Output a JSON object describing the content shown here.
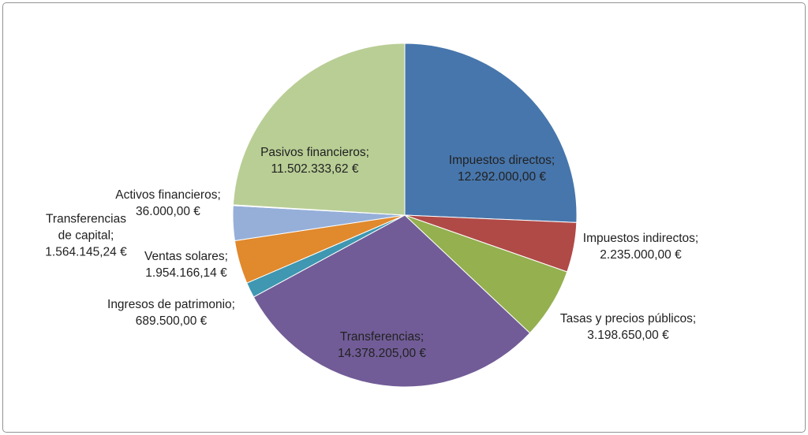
{
  "frame": {
    "border_color": "#939393",
    "background": "#FFFFFF"
  },
  "chart_data": {
    "type": "pie",
    "title": "",
    "currency": "€",
    "label_format": "category; value €",
    "direction": "clockwise",
    "start_angle_deg": 0,
    "legend": "none",
    "total": 47850000.0,
    "slices": [
      {
        "label": "Impuestos directos;",
        "value": 12292000.0,
        "value_label": "12.292.000,00 €",
        "color": "#4776AC"
      },
      {
        "label": "Impuestos indirectos;",
        "value": 2235000.0,
        "value_label": "2.235.000,00 €",
        "color": "#B04A47"
      },
      {
        "label": "Tasas y precios públicos;",
        "value": 3198650.0,
        "value_label": "3.198.650,00 €",
        "color": "#94B04F"
      },
      {
        "label": "Transferencias;",
        "value": 14378205.0,
        "value_label": "14.378.205,00 €",
        "color": "#715C97"
      },
      {
        "label": "Ingresos de patrimonio;",
        "value": 689500.0,
        "value_label": "689.500,00 €",
        "color": "#3F97B1"
      },
      {
        "label": "Ventas solares;",
        "value": 1954166.14,
        "value_label": "1.954.166,14 €",
        "color": "#E0892D"
      },
      {
        "label": "Transferencias de capital;",
        "value": 1564145.24,
        "value_label": "1.564.145,24 €",
        "color": "#95AFD9"
      },
      {
        "label": "Activos financieros;",
        "value": 36000.0,
        "value_label": "36.000,00 €",
        "color": "#D99694"
      },
      {
        "label": "Pasivos financieros;",
        "value": 11502333.62,
        "value_label": "11.502.333,62 €",
        "color": "#B9CE95"
      }
    ]
  }
}
